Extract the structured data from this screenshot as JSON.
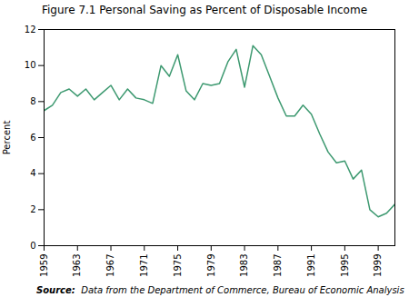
{
  "chart_data": {
    "type": "line",
    "title": "Figure 7.1 Personal Saving as Percent of Disposable Income",
    "ylabel": "Percent",
    "caption_bold": "Source:",
    "caption": "  Data from the Department of Commerce, Bureau of Economic Analysis",
    "color": "#3d9970",
    "x": [
      1959,
      1960,
      1961,
      1962,
      1963,
      1964,
      1965,
      1966,
      1967,
      1968,
      1969,
      1970,
      1971,
      1972,
      1973,
      1974,
      1975,
      1976,
      1977,
      1978,
      1979,
      1980,
      1981,
      1982,
      1983,
      1984,
      1985,
      1986,
      1987,
      1988,
      1989,
      1990,
      1991,
      1992,
      1993,
      1994,
      1995,
      1996,
      1997,
      1998,
      1999,
      2000,
      2001
    ],
    "values": [
      7.5,
      7.8,
      8.5,
      8.7,
      8.3,
      8.7,
      8.1,
      8.5,
      8.9,
      8.1,
      8.7,
      8.2,
      8.1,
      7.9,
      10.0,
      9.4,
      10.6,
      8.6,
      8.1,
      9.0,
      8.9,
      9.0,
      10.2,
      10.9,
      8.8,
      11.1,
      10.6,
      9.4,
      8.2,
      7.2,
      7.2,
      7.8,
      7.3,
      6.2,
      5.2,
      4.6,
      4.7,
      3.7,
      4.2,
      2.0,
      1.6,
      1.8,
      2.3
    ],
    "xlim": [
      1959,
      2001
    ],
    "xticks": [
      1959,
      1963,
      1967,
      1971,
      1975,
      1979,
      1983,
      1987,
      1991,
      1995,
      1999
    ],
    "ylim": [
      0,
      12
    ],
    "yticks": [
      0,
      2,
      4,
      6,
      8,
      10,
      12
    ],
    "grid": false
  }
}
